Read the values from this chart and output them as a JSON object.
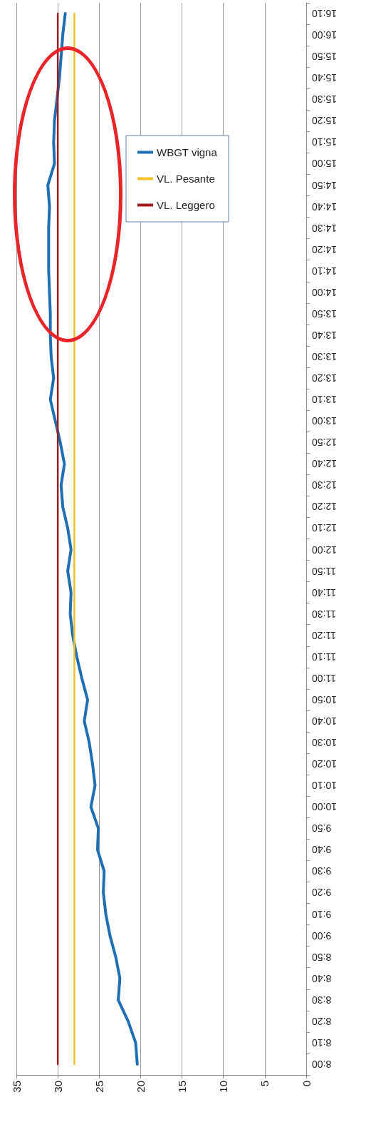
{
  "chart_data": {
    "type": "line",
    "categories": [
      "16:10",
      "16:00",
      "15:50",
      "15:40",
      "15:30",
      "15:20",
      "15:10",
      "15:00",
      "14:50",
      "14:40",
      "14:30",
      "14:20",
      "14:10",
      "14:00",
      "13:50",
      "13:40",
      "13:30",
      "13:20",
      "13:10",
      "13:00",
      "12:50",
      "12:40",
      "12:30",
      "12:20",
      "12:10",
      "12:00",
      "11:50",
      "11:40",
      "11:30",
      "11:20",
      "11:10",
      "11:00",
      "10:50",
      "10:40",
      "10:30",
      "10:20",
      "10:10",
      "10:00",
      "9:50",
      "9:40",
      "9:30",
      "9:20",
      "9:10",
      "9:00",
      "8:50",
      "8:40",
      "8:30",
      "8:20",
      "8:10",
      "8:00"
    ],
    "series": [
      {
        "name": "WBGT vigna",
        "color": "#1f6fb4",
        "values": [
          29.1,
          29.4,
          29.6,
          29.8,
          30.1,
          30.4,
          30.5,
          30.4,
          31.2,
          31.0,
          31.1,
          31.1,
          31.1,
          31.0,
          30.9,
          30.9,
          30.8,
          30.5,
          30.9,
          30.3,
          29.7,
          29.2,
          29.6,
          29.4,
          28.8,
          28.4,
          28.8,
          28.4,
          28.5,
          28.2,
          27.7,
          27.1,
          26.4,
          26.8,
          26.2,
          25.8,
          25.5,
          26.0,
          25.1,
          25.2,
          24.4,
          24.5,
          24.2,
          23.7,
          23.0,
          22.5,
          22.7,
          21.5,
          20.6,
          20.4
        ]
      },
      {
        "name": "VL. Pesante",
        "color": "#f2c12e",
        "values": [
          28,
          28,
          28,
          28,
          28,
          28,
          28,
          28,
          28,
          28,
          28,
          28,
          28,
          28,
          28,
          28,
          28,
          28,
          28,
          28,
          28,
          28,
          28,
          28,
          28,
          28,
          28,
          28,
          28,
          28,
          28,
          28,
          28,
          28,
          28,
          28,
          28,
          28,
          28,
          28,
          28,
          28,
          28,
          28,
          28,
          28,
          28,
          28,
          28,
          28
        ]
      },
      {
        "name": "VL. Leggero",
        "color": "#a31a1c",
        "values": [
          30,
          30,
          30,
          30,
          30,
          30,
          30,
          30,
          30,
          30,
          30,
          30,
          30,
          30,
          30,
          30,
          30,
          30,
          30,
          30,
          30,
          30,
          30,
          30,
          30,
          30,
          30,
          30,
          30,
          30,
          30,
          30,
          30,
          30,
          30,
          30,
          30,
          30,
          30,
          30,
          30,
          30,
          30,
          30,
          30,
          30,
          30,
          30,
          30,
          30
        ]
      }
    ],
    "orientation": "horizontal",
    "xlim": [
      35,
      0
    ],
    "xticks": [
      0,
      5,
      10,
      15,
      20,
      25,
      30,
      35
    ],
    "grid": "x",
    "legend": "top right",
    "marker": "none",
    "line_style": "solid"
  }
}
